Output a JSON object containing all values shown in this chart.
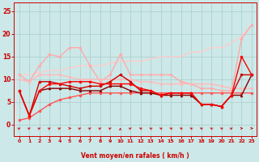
{
  "xlabel": "Vent moyen/en rafales ( km/h )",
  "bg_color": "#cce8e8",
  "grid_color": "#aacccc",
  "xlim": [
    -0.5,
    23.5
  ],
  "ylim": [
    0,
    27
  ],
  "yticks": [
    0,
    5,
    10,
    15,
    20,
    25
  ],
  "xticks": [
    0,
    1,
    2,
    3,
    4,
    5,
    6,
    7,
    8,
    9,
    10,
    11,
    12,
    13,
    14,
    15,
    16,
    17,
    18,
    19,
    20,
    21,
    22,
    23
  ],
  "lines": [
    {
      "x": [
        0,
        1,
        2,
        3,
        4,
        5,
        6,
        7,
        8,
        9,
        10,
        11,
        12,
        13,
        14,
        15,
        16,
        17,
        18,
        19,
        20,
        21,
        22,
        23
      ],
      "y": [
        11,
        9.5,
        13,
        15.5,
        15,
        17,
        17,
        13,
        9.5,
        11,
        15.5,
        11,
        11,
        11,
        11,
        11,
        9.5,
        9,
        8,
        8,
        7.5,
        7.5,
        19,
        22
      ],
      "color": "#ffaaaa",
      "marker": "o",
      "markersize": 2.0,
      "linewidth": 1.0,
      "zorder": 2
    },
    {
      "x": [
        0,
        1,
        2,
        3,
        4,
        5,
        6,
        7,
        8,
        9,
        10,
        11,
        12,
        13,
        14,
        15,
        16,
        17,
        18,
        19,
        20,
        21,
        22,
        23
      ],
      "y": [
        11,
        11,
        11.5,
        12,
        12,
        12.5,
        13,
        13,
        13,
        13.5,
        14,
        14,
        14,
        14.5,
        15,
        15,
        15,
        16,
        16,
        17,
        17,
        18,
        19.5,
        22
      ],
      "color": "#ffcccc",
      "marker": null,
      "markersize": 0,
      "linewidth": 1.0,
      "zorder": 1
    },
    {
      "x": [
        0,
        1,
        2,
        3,
        4,
        5,
        6,
        7,
        8,
        9,
        10,
        11,
        12,
        13,
        14,
        15,
        16,
        17,
        18,
        19,
        20,
        21,
        22,
        23
      ],
      "y": [
        10,
        9.5,
        11,
        11,
        11,
        10.5,
        10,
        10,
        10,
        10,
        10,
        10,
        9.5,
        9.5,
        9,
        9,
        9,
        9,
        9,
        9,
        8.5,
        8,
        8,
        8
      ],
      "color": "#ffbbbb",
      "marker": "o",
      "markersize": 2.0,
      "linewidth": 1.0,
      "zorder": 2
    },
    {
      "x": [
        0,
        1,
        2,
        3,
        4,
        5,
        6,
        7,
        8,
        9,
        10,
        11,
        12,
        13,
        14,
        15,
        16,
        17,
        18,
        19,
        20,
        21,
        22,
        23
      ],
      "y": [
        7.5,
        2,
        9.5,
        9.5,
        9,
        8.5,
        8,
        8.5,
        8.5,
        9.5,
        11,
        9.5,
        7.5,
        7.5,
        6.5,
        7,
        7,
        7,
        4.5,
        4.5,
        4,
        6.5,
        11,
        11
      ],
      "color": "#cc0000",
      "marker": "o",
      "markersize": 2.0,
      "linewidth": 1.0,
      "zorder": 4
    },
    {
      "x": [
        0,
        1,
        2,
        3,
        4,
        5,
        6,
        7,
        8,
        9,
        10,
        11,
        12,
        13,
        14,
        15,
        16,
        17,
        18,
        19,
        20,
        21,
        22,
        23
      ],
      "y": [
        7.5,
        2,
        7.5,
        8,
        8,
        8,
        7.5,
        7.5,
        7.5,
        8.5,
        8.5,
        7.5,
        7,
        7,
        6.5,
        6.5,
        6.5,
        6.5,
        4.5,
        4.5,
        4,
        6.5,
        6.5,
        11
      ],
      "color": "#880000",
      "marker": "^",
      "markersize": 2.0,
      "linewidth": 1.0,
      "zorder": 4
    },
    {
      "x": [
        0,
        1,
        2,
        3,
        4,
        5,
        6,
        7,
        8,
        9,
        10,
        11,
        12,
        13,
        14,
        15,
        16,
        17,
        18,
        19,
        20,
        21,
        22,
        23
      ],
      "y": [
        7.5,
        2,
        7.5,
        9,
        9,
        9.5,
        9.5,
        9.5,
        9,
        9,
        9,
        9,
        8,
        7.5,
        6.5,
        7,
        7,
        7,
        4.5,
        4.5,
        4,
        6.5,
        15,
        11
      ],
      "color": "#ff0000",
      "marker": "o",
      "markersize": 2.0,
      "linewidth": 1.0,
      "zorder": 4
    },
    {
      "x": [
        0,
        1,
        2,
        3,
        4,
        5,
        6,
        7,
        8,
        9,
        10,
        11,
        12,
        13,
        14,
        15,
        16,
        17,
        18,
        19,
        20,
        21,
        22,
        23
      ],
      "y": [
        1,
        1.5,
        3,
        4.5,
        5.5,
        6,
        6.5,
        7,
        7,
        7,
        7,
        7,
        7,
        7,
        7,
        7,
        7,
        7,
        7,
        7,
        7,
        7,
        7,
        7
      ],
      "color": "#ff5555",
      "marker": "o",
      "markersize": 2.0,
      "linewidth": 1.0,
      "zorder": 3
    }
  ],
  "wind_arrows": [
    [
      0,
      45
    ],
    [
      1,
      45
    ],
    [
      2,
      45
    ],
    [
      3,
      45
    ],
    [
      4,
      45
    ],
    [
      5,
      10
    ],
    [
      6,
      45
    ],
    [
      7,
      45
    ],
    [
      8,
      45
    ],
    [
      9,
      45
    ],
    [
      10,
      90
    ],
    [
      11,
      45
    ],
    [
      12,
      135
    ],
    [
      13,
      135
    ],
    [
      14,
      135
    ],
    [
      15,
      135
    ],
    [
      16,
      135
    ],
    [
      17,
      135
    ],
    [
      18,
      135
    ],
    [
      19,
      135
    ],
    [
      20,
      135
    ],
    [
      21,
      45
    ],
    [
      22,
      10
    ],
    [
      23,
      10
    ]
  ]
}
